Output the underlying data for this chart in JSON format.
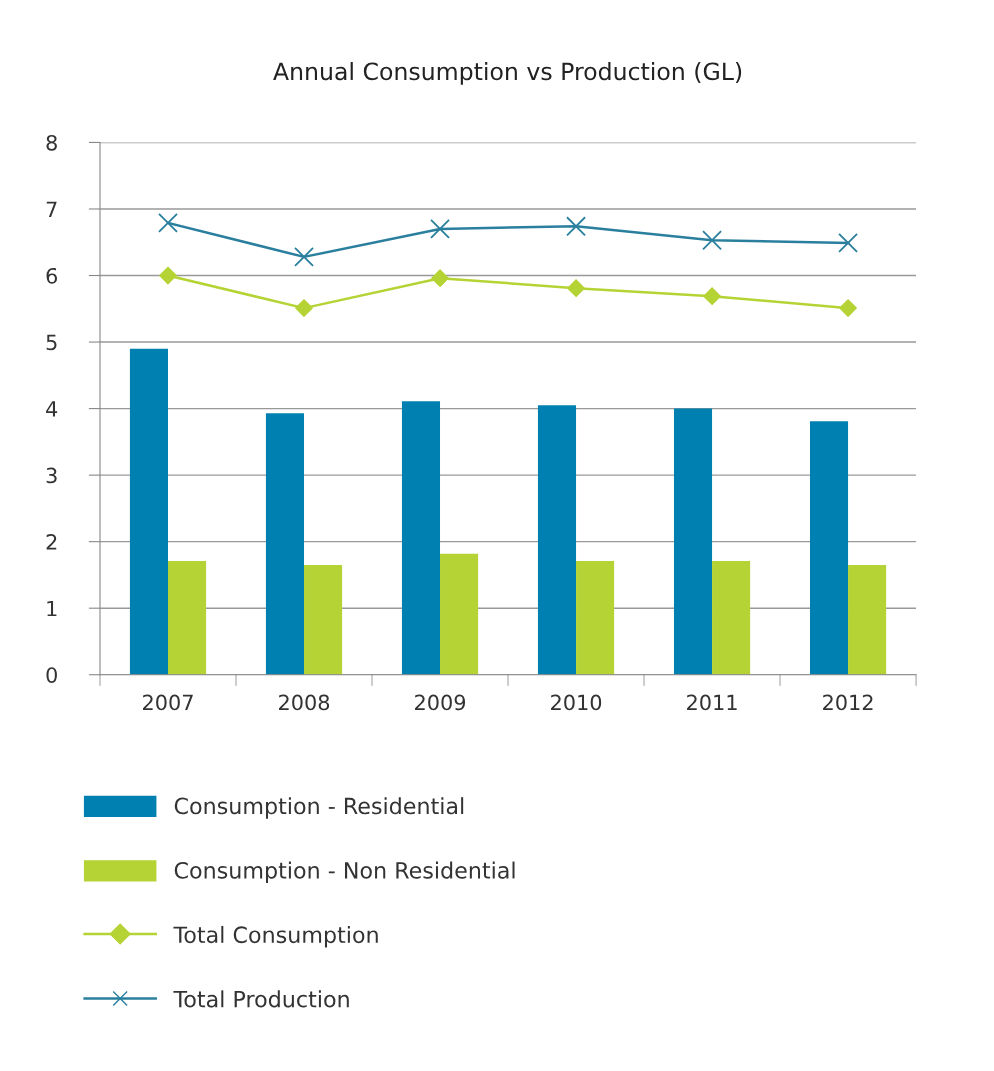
{
  "chart_data": {
    "type": "bar",
    "title": "Annual Consumption vs Production (GL)",
    "categories": [
      "2007",
      "2008",
      "2009",
      "2010",
      "2011",
      "2012"
    ],
    "series": [
      {
        "name": "Consumption - Residential",
        "color": "#0080b0",
        "values": [
          4.9,
          3.93,
          4.11,
          4.05,
          4.0,
          3.81
        ]
      },
      {
        "name": "Consumption - Non Residential",
        "color": "#b5d334",
        "values": [
          1.71,
          1.65,
          1.82,
          1.71,
          1.71,
          1.65
        ]
      },
      {
        "name": "Total Consumption",
        "type": "line",
        "color": "#b5d334",
        "marker": "diamond",
        "values": [
          6.0,
          5.51,
          5.96,
          5.81,
          5.69,
          5.51
        ]
      },
      {
        "name": "Total Production",
        "type": "line",
        "color": "#2a7f9e",
        "marker": "cross",
        "values": [
          6.79,
          6.28,
          6.7,
          6.74,
          6.53,
          6.49
        ]
      }
    ],
    "ylim": [
      0,
      8
    ],
    "yticks": [
      0,
      1,
      2,
      3,
      4,
      5,
      6,
      7,
      8
    ],
    "grid": "y",
    "legend": "bottom",
    "line_style": "solid"
  }
}
